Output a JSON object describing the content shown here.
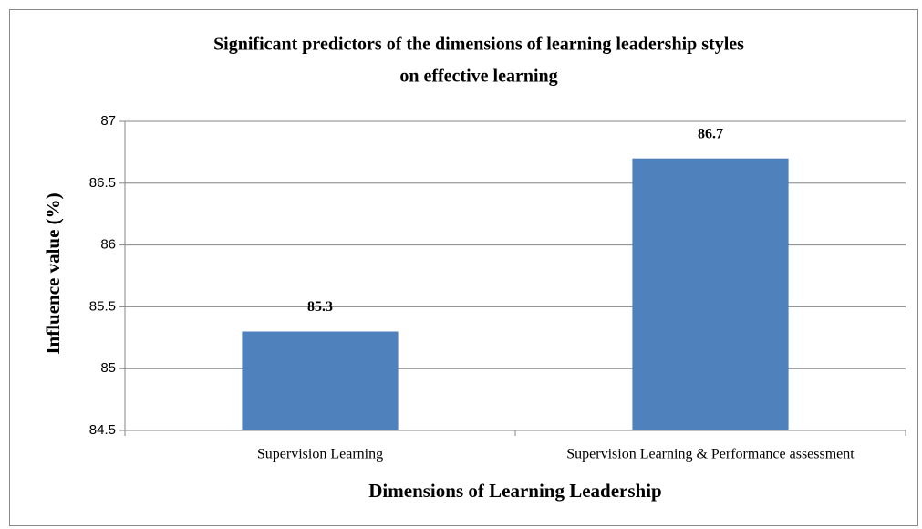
{
  "chart_data": {
    "type": "bar",
    "title": [
      "Significant predictors of the dimensions of learning leadership styles",
      "on effective learning"
    ],
    "x_label": "Dimensions of Learning Leadership",
    "y_label": "Influence  value (%)",
    "categories": [
      "Supervision Learning",
      "Supervision Learning & Performance assessment"
    ],
    "values": [
      85.3,
      86.7
    ],
    "color": "#4f81bd",
    "ylim": [
      84.5,
      87
    ],
    "yticks": [
      84.5,
      85,
      85.5,
      86,
      86.5,
      87
    ],
    "grid": true
  }
}
